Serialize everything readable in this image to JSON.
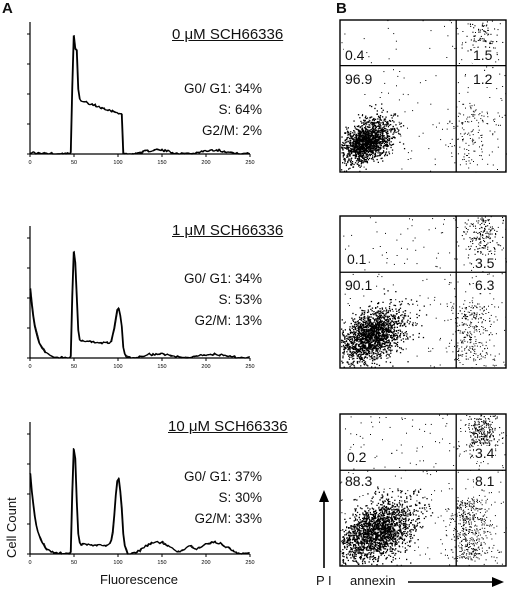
{
  "panel_labels": {
    "a": "A",
    "b": "B"
  },
  "rows": [
    {
      "title": "0 μM SCH66336",
      "stats": [
        "G0/ G1: 34%",
        "S: 64%",
        "G2/M: 2%"
      ],
      "quadrants": {
        "ul": "0.4",
        "ur": "1.5",
        "ll": "96.9",
        "lr": "1.2"
      }
    },
    {
      "title": "1 μM SCH66336",
      "stats": [
        "G0/ G1: 34%",
        "S: 53%",
        "G2/M: 13%"
      ],
      "quadrants": {
        "ul": "0.1",
        "ur": "3.5",
        "ll": "90.1",
        "lr": "6.3"
      }
    },
    {
      "title": "10 μM SCH66336",
      "stats": [
        "G0/ G1: 37%",
        "S: 30%",
        "G2/M: 33%"
      ],
      "quadrants": {
        "ul": "0.2",
        "ur": "3.4",
        "ll": "88.3",
        "lr": "8.1"
      }
    }
  ],
  "histogram_ticks": [
    "0",
    "50",
    "100",
    "150",
    "200",
    "250"
  ],
  "axis_labels": {
    "histogram_y": "Cell Count",
    "histogram_x": "Fluorescence",
    "scatter_y": "P I",
    "scatter_x": "annexin"
  }
}
